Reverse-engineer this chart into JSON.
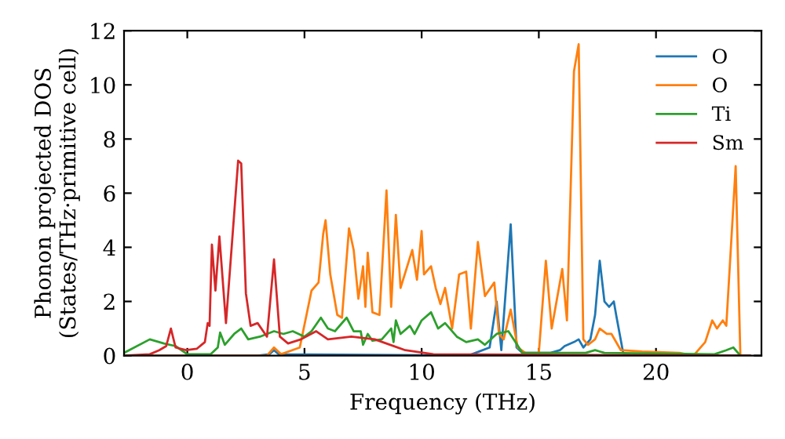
{
  "chart_data": {
    "type": "line",
    "xlabel": "Frequency (THz)",
    "ylabel": "Phonon projected DOS\n(States/THz·primitive cell)",
    "xlim": [
      -2.7,
      24.5
    ],
    "ylim": [
      0,
      12
    ],
    "xticks": [
      0,
      5,
      10,
      15,
      20
    ],
    "yticks": [
      0,
      2,
      4,
      6,
      8,
      10,
      12
    ],
    "grid": false,
    "legend": "top right",
    "marker": "none",
    "line_style": "solid",
    "series": [
      {
        "name": "O",
        "color": "#1f77b4",
        "x": [
          -2.7,
          3.0,
          3.5,
          3.7,
          3.9,
          12.0,
          12.3,
          12.9,
          13.2,
          13.4,
          13.8,
          14.05,
          14.3,
          15.5,
          15.9,
          16.1,
          16.5,
          16.7,
          16.9,
          17.2,
          17.4,
          17.6,
          17.8,
          18.0,
          18.2,
          18.3,
          18.6,
          19.0,
          24.0
        ],
        "values": [
          0,
          0,
          0.05,
          0.2,
          0.05,
          0,
          0.1,
          0.3,
          2.0,
          0.2,
          4.85,
          0.3,
          0.1,
          0.1,
          0.2,
          0.35,
          0.5,
          0.6,
          0.3,
          0.6,
          1.5,
          3.5,
          2.0,
          1.8,
          2.0,
          1.5,
          0.1,
          0,
          0
        ]
      },
      {
        "name": "O",
        "color": "#ff7f0e",
        "x": [
          -2.7,
          3.4,
          3.7,
          4.0,
          4.8,
          5.3,
          5.6,
          5.8,
          5.9,
          6.1,
          6.4,
          6.6,
          6.9,
          7.1,
          7.3,
          7.5,
          7.6,
          7.7,
          7.9,
          8.2,
          8.5,
          8.7,
          8.9,
          9.1,
          9.6,
          9.8,
          10.0,
          10.1,
          10.4,
          10.6,
          10.8,
          11.0,
          11.3,
          11.6,
          11.9,
          12.1,
          12.4,
          12.7,
          13.1,
          13.3,
          13.5,
          13.8,
          14.1,
          14.5,
          15.0,
          15.3,
          15.55,
          15.9,
          16.0,
          16.2,
          16.5,
          16.7,
          16.9,
          17.1,
          17.4,
          17.6,
          17.9,
          18.1,
          18.5,
          19.4,
          21.0,
          21.6,
          22.1,
          22.4,
          22.6,
          22.85,
          23.0,
          23.4,
          23.6,
          24.0
        ],
        "values": [
          0,
          0,
          0.3,
          0.05,
          0.3,
          2.4,
          2.7,
          4.5,
          5.0,
          3.0,
          1.5,
          1.4,
          4.7,
          3.9,
          2.1,
          3.3,
          1.8,
          3.8,
          1.6,
          1.5,
          6.1,
          1.8,
          5.2,
          2.5,
          3.9,
          2.8,
          4.6,
          3.0,
          3.3,
          2.5,
          1.9,
          2.5,
          1.0,
          3.0,
          3.1,
          1.0,
          4.2,
          2.2,
          2.7,
          0.8,
          0.6,
          1.7,
          0.3,
          0.05,
          0.1,
          3.5,
          1.0,
          2.7,
          3.2,
          1.3,
          10.5,
          11.5,
          0.6,
          0.4,
          0.6,
          1.0,
          0.8,
          0.8,
          0.2,
          0.15,
          0.1,
          0,
          0.5,
          1.3,
          1.0,
          1.3,
          1.1,
          7.0,
          0,
          0
        ]
      },
      {
        "name": "Ti",
        "color": "#2ca02c",
        "x": [
          -2.7,
          -1.6,
          -1.0,
          -0.5,
          0.0,
          1.0,
          1.3,
          1.4,
          1.6,
          2.0,
          2.3,
          2.6,
          3.1,
          3.7,
          4.1,
          4.5,
          5.0,
          5.3,
          5.7,
          6.0,
          6.3,
          6.8,
          7.1,
          7.4,
          7.5,
          7.7,
          7.9,
          8.3,
          8.7,
          8.8,
          8.9,
          9.1,
          9.5,
          9.7,
          10.0,
          10.4,
          10.7,
          11.0,
          11.5,
          11.9,
          12.4,
          12.7,
          13.2,
          13.7,
          14.0,
          14.3,
          17.0,
          17.4,
          17.8,
          22.5,
          23.0,
          23.3,
          23.6,
          24.0
        ],
        "values": [
          0.1,
          0.6,
          0.45,
          0.35,
          0.05,
          0.05,
          0.3,
          0.85,
          0.4,
          0.8,
          1.0,
          0.6,
          0.7,
          0.9,
          0.8,
          0.9,
          0.7,
          0.9,
          1.4,
          1.0,
          0.9,
          1.4,
          0.9,
          0.9,
          0.4,
          0.8,
          0.55,
          0.6,
          1.0,
          0.5,
          1.3,
          0.8,
          1.1,
          0.8,
          1.3,
          1.6,
          1.0,
          1.2,
          0.7,
          0.5,
          0.6,
          0.4,
          0.8,
          0.9,
          0.5,
          0.1,
          0.1,
          0.2,
          0.1,
          0.05,
          0.2,
          0.3,
          0,
          0
        ]
      },
      {
        "name": "Sm",
        "color": "#d62728",
        "x": [
          -2.7,
          -1.6,
          -1.2,
          -0.9,
          -0.7,
          -0.5,
          -0.05,
          0.4,
          0.75,
          0.87,
          0.95,
          1.05,
          1.2,
          1.37,
          1.65,
          2.17,
          2.3,
          2.5,
          2.7,
          3.0,
          3.4,
          3.7,
          3.95,
          4.3,
          4.85,
          5.5,
          6.0,
          7.0,
          8.0,
          9.3,
          10.5,
          24.0
        ],
        "values": [
          0,
          0.05,
          0.2,
          0.35,
          1.0,
          0.3,
          0.2,
          0.25,
          0.5,
          1.2,
          1.1,
          4.1,
          2.4,
          4.4,
          1.2,
          7.2,
          7.1,
          2.3,
          1.1,
          1.2,
          0.7,
          3.55,
          0.7,
          0.45,
          0.6,
          0.9,
          0.6,
          0.7,
          0.6,
          0.2,
          0.05,
          0
        ]
      }
    ]
  }
}
